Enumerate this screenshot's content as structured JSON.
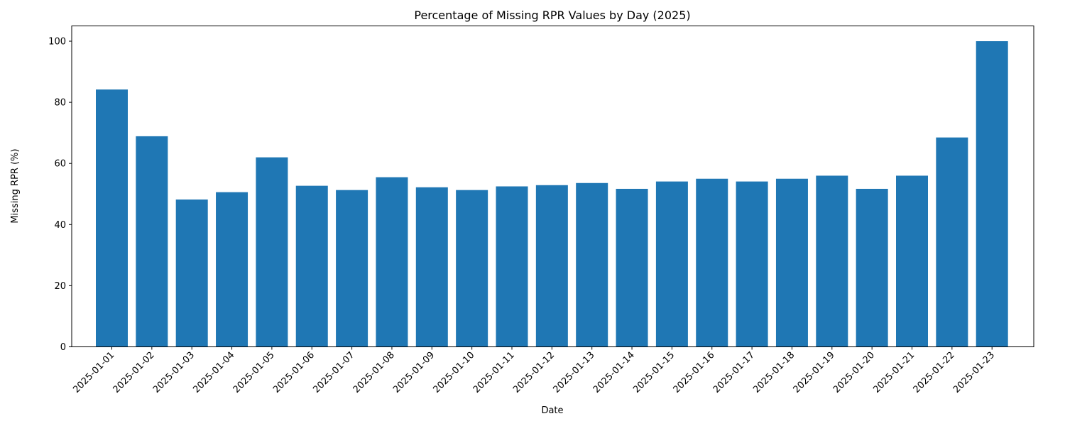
{
  "chart_data": {
    "type": "bar",
    "title": "Percentage of Missing RPR Values by Day (2025)",
    "xlabel": "Date",
    "ylabel": "Missing RPR (%)",
    "categories": [
      "2025-01-01",
      "2025-01-02",
      "2025-01-03",
      "2025-01-04",
      "2025-01-05",
      "2025-01-06",
      "2025-01-07",
      "2025-01-08",
      "2025-01-09",
      "2025-01-10",
      "2025-01-11",
      "2025-01-12",
      "2025-01-13",
      "2025-01-14",
      "2025-01-15",
      "2025-01-16",
      "2025-01-17",
      "2025-01-18",
      "2025-01-19",
      "2025-01-20",
      "2025-01-21",
      "2025-01-22",
      "2025-01-23"
    ],
    "values": [
      84.2,
      68.9,
      48.2,
      50.6,
      62.0,
      52.7,
      51.3,
      55.5,
      52.2,
      51.3,
      52.5,
      52.9,
      53.6,
      51.7,
      54.1,
      55.0,
      54.1,
      55.0,
      56.0,
      51.7,
      56.0,
      68.5,
      100.0
    ],
    "ylim": [
      0,
      105
    ],
    "yticks": [
      0,
      20,
      40,
      60,
      80,
      100
    ],
    "bar_color": "#1f77b4",
    "grid": false,
    "legend": "none"
  }
}
